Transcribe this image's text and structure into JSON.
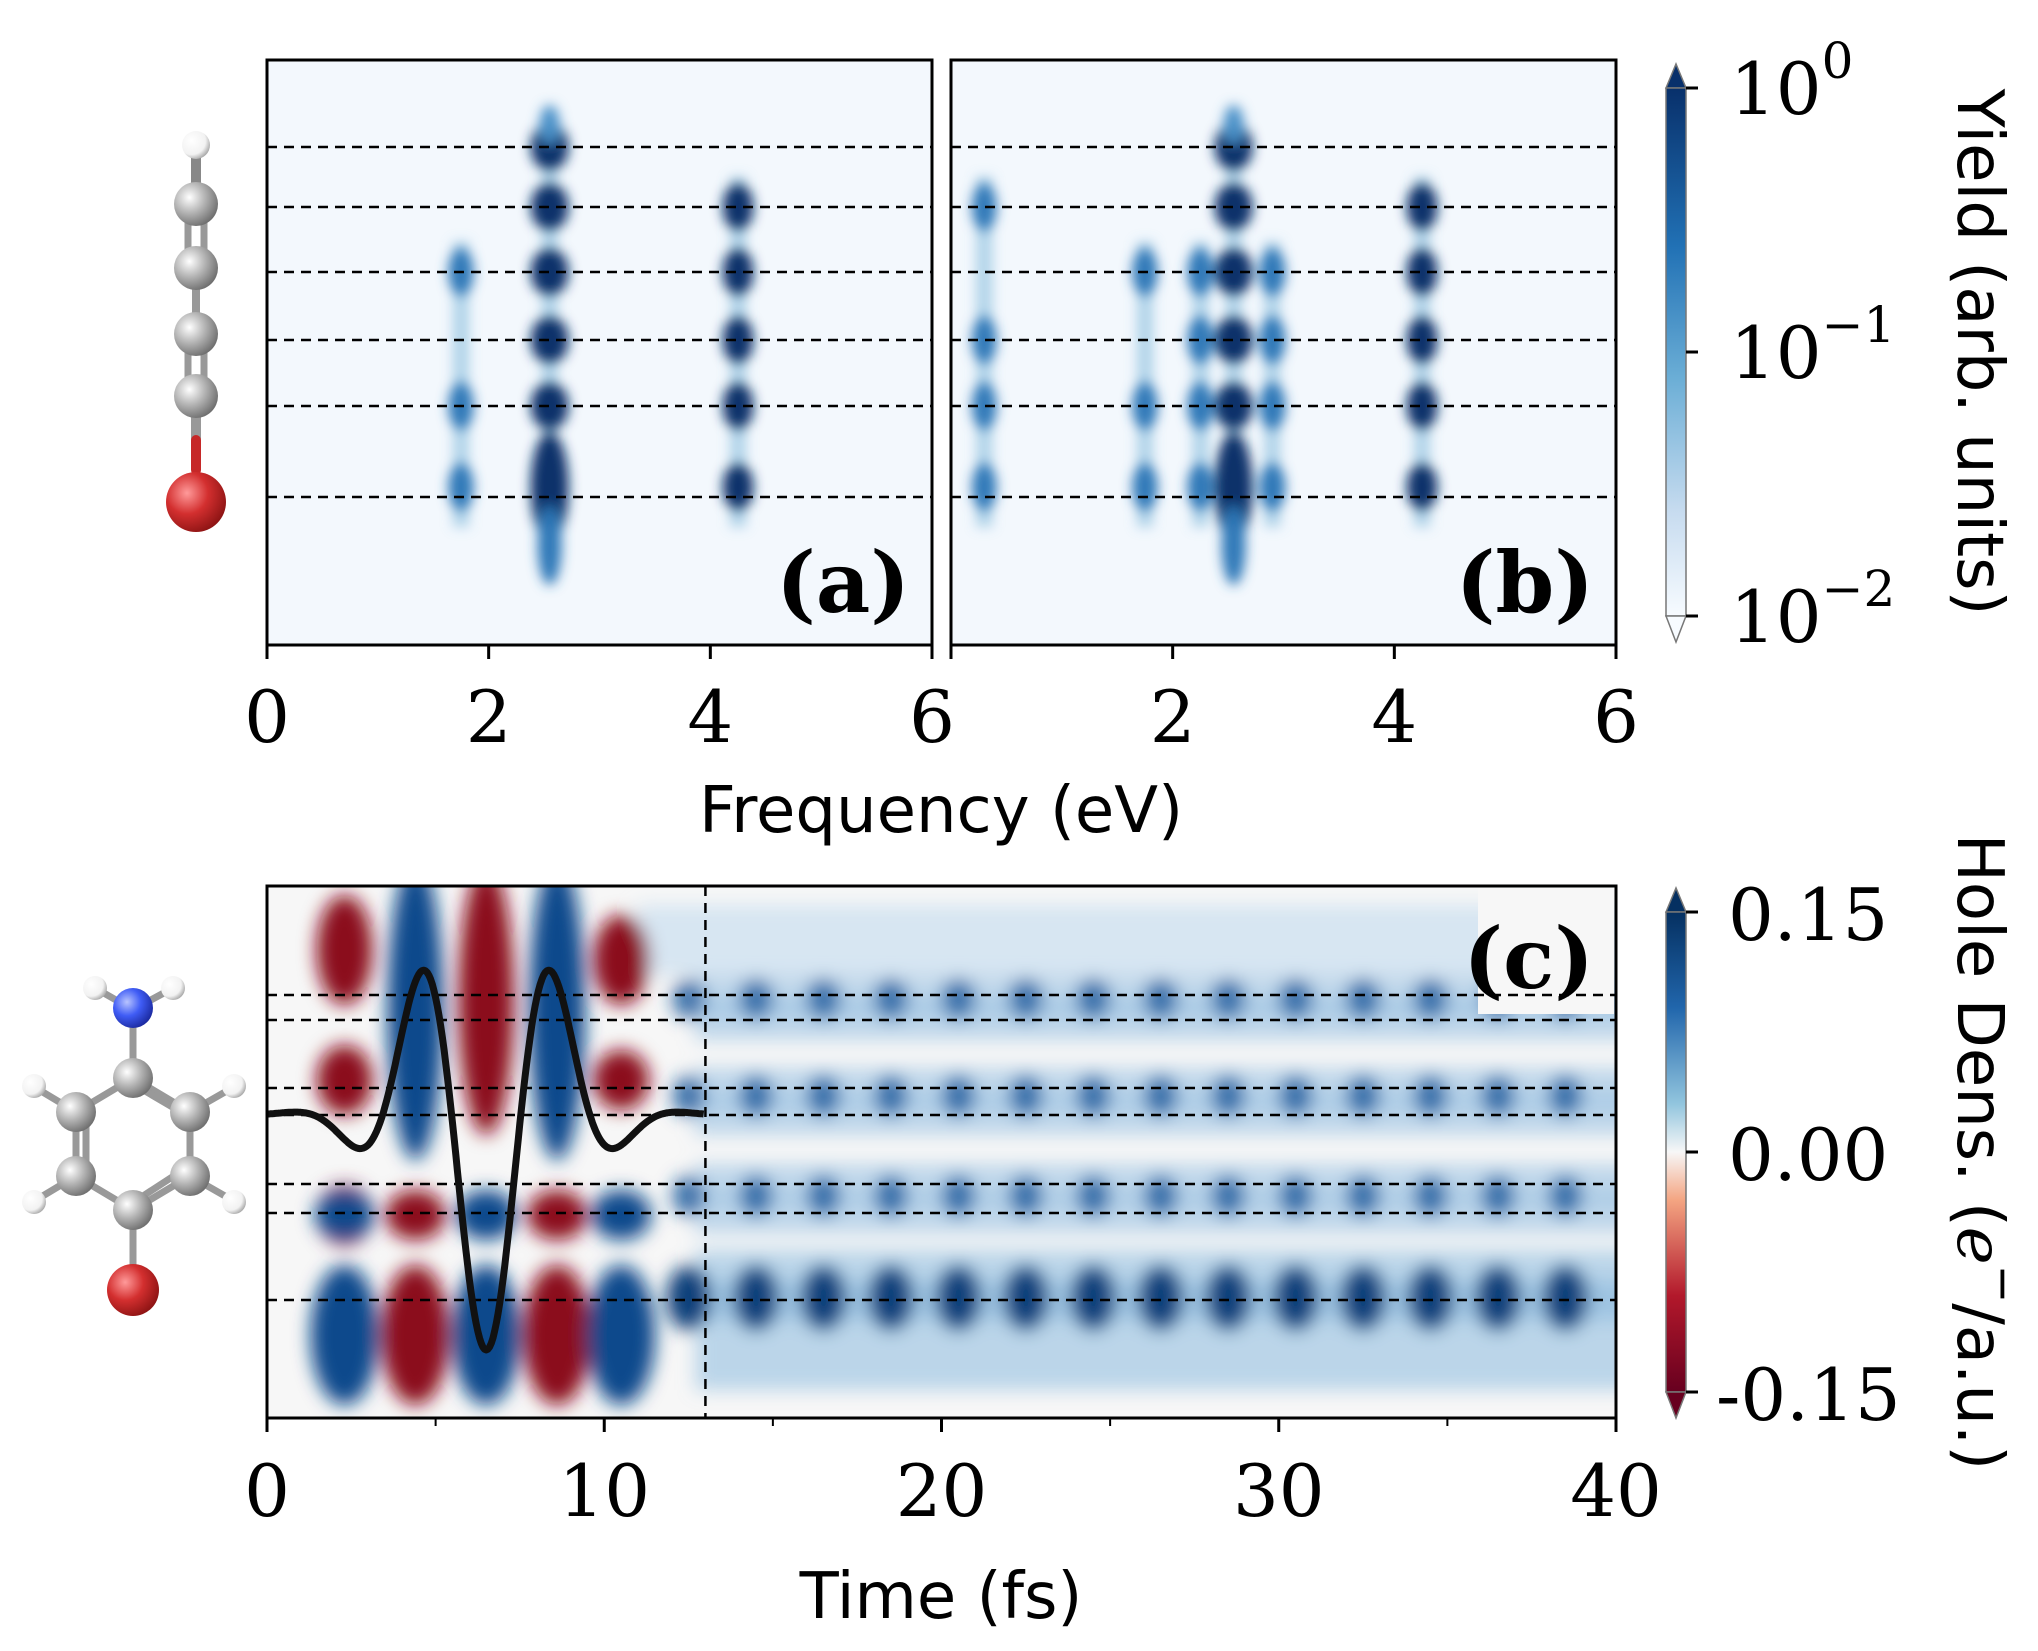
{
  "chart_data": [
    {
      "id": "a",
      "type": "heatmap",
      "panel_label": "(a)",
      "xlabel": "Frequency (eV)",
      "xlim": [
        0,
        6
      ],
      "x_ticks": [
        "0",
        "2",
        "4",
        "6"
      ],
      "dashed_rows": 6,
      "peaks": [
        {
          "freq": 1.75,
          "rows": [
            2,
            4,
            5
          ],
          "intensity": 0.55
        },
        {
          "freq": 2.55,
          "rows": [
            0,
            1,
            2,
            3,
            4,
            5
          ],
          "intensity": 1.0
        },
        {
          "freq": 4.25,
          "rows": [
            1,
            2,
            3,
            4,
            5
          ],
          "intensity": 0.9
        }
      ]
    },
    {
      "id": "b",
      "type": "heatmap",
      "panel_label": "(b)",
      "xlabel": "Frequency (eV)",
      "xlim": [
        0,
        6
      ],
      "x_ticks": [
        "2",
        "4",
        "6"
      ],
      "dashed_rows": 6,
      "peaks": [
        {
          "freq": 0.3,
          "rows": [
            1,
            3,
            4,
            5
          ],
          "intensity": 0.5
        },
        {
          "freq": 1.75,
          "rows": [
            2,
            4,
            5
          ],
          "intensity": 0.55
        },
        {
          "freq": 2.25,
          "rows": [
            2,
            3,
            4,
            5
          ],
          "intensity": 0.6
        },
        {
          "freq": 2.55,
          "rows": [
            0,
            1,
            2,
            3,
            4,
            5
          ],
          "intensity": 1.0
        },
        {
          "freq": 2.9,
          "rows": [
            2,
            3,
            4,
            5
          ],
          "intensity": 0.6
        },
        {
          "freq": 4.25,
          "rows": [
            1,
            2,
            3,
            4,
            5
          ],
          "intensity": 0.9
        }
      ]
    },
    {
      "id": "c",
      "type": "heatmap",
      "panel_label": "(c)",
      "xlabel": "Time (fs)",
      "xlim": [
        0,
        40
      ],
      "x_ticks": [
        "0",
        "10",
        "20",
        "30",
        "40"
      ],
      "pulse_end_fs": 13,
      "pulse": {
        "center_fs": 6.5,
        "period_fs": 4.1,
        "sigma_fs": 2.8
      }
    }
  ],
  "colorbars": [
    {
      "label": "Yield (arb. units)",
      "ticks": [
        {
          "base": "10",
          "exp": "0"
        },
        {
          "base": "10",
          "exp": "−1"
        },
        {
          "base": "10",
          "exp": "−2"
        }
      ],
      "colors": [
        "#08306b",
        "#2171b5",
        "#6baed6",
        "#c6dbef",
        "#f7fbff"
      ]
    },
    {
      "label_main": "Hole Dens. (",
      "label_var": "e",
      "label_sup": "−",
      "label_tail": "/a.u.)",
      "ticks": [
        "0.15",
        "0.00",
        "-0.15"
      ],
      "colors": [
        "#053061",
        "#2166ac",
        "#92c5de",
        "#f7f7f7",
        "#f4a582",
        "#b2182b",
        "#67001f"
      ]
    }
  ],
  "molecules": [
    {
      "name": "bromoacetylene-chain",
      "atom_colors": {
        "H": "#ffffff",
        "C": "#a6a6a6",
        "Br": "#c62828"
      }
    },
    {
      "name": "bromoaniline",
      "atom_colors": {
        "H": "#ffffff",
        "C": "#a6a6a6",
        "N": "#3050f8",
        "Br": "#c62828"
      }
    }
  ]
}
